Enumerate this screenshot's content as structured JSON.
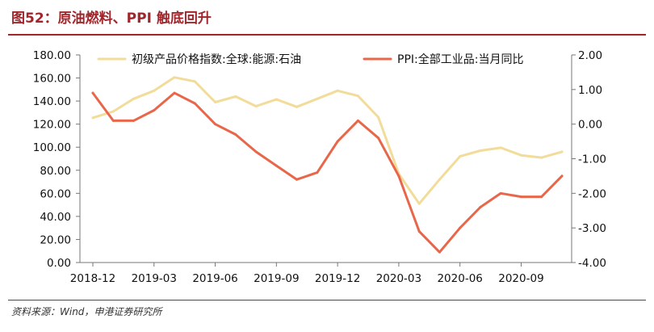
{
  "header": {
    "title": "图52：原油燃料、PPI 触底回升"
  },
  "footer": {
    "source": "资料来源：Wind，申港证券研究所"
  },
  "chart_data": {
    "type": "line",
    "title": "图52：原油燃料、PPI 触底回升",
    "x": [
      "2018-12",
      "2019-01",
      "2019-02",
      "2019-03",
      "2019-04",
      "2019-05",
      "2019-06",
      "2019-07",
      "2019-08",
      "2019-09",
      "2019-10",
      "2019-11",
      "2019-12",
      "2020-01",
      "2020-02",
      "2020-03",
      "2020-04",
      "2020-05",
      "2020-06",
      "2020-07",
      "2020-08",
      "2020-09",
      "2020-10",
      "2020-11"
    ],
    "x_tick_labels": [
      "2018-12",
      "2019-03",
      "2019-06",
      "2019-09",
      "2019-12",
      "2020-03",
      "2020-06",
      "2020-09"
    ],
    "y_left_ticks": [
      "0.00",
      "20.00",
      "40.00",
      "60.00",
      "80.00",
      "100.00",
      "120.00",
      "140.00",
      "160.00",
      "180.00"
    ],
    "y_right_ticks": [
      "-4.00",
      "-3.00",
      "-2.00",
      "-1.00",
      "0.00",
      "1.00",
      "2.00"
    ],
    "ylim_left": [
      0,
      180
    ],
    "ylim_right": [
      -4,
      2
    ],
    "legend_position": "top",
    "series": [
      {
        "name": "初级产品价格指数:全球:能源:石油",
        "axis": "left",
        "color": "#f2dc9a",
        "values": [
          125.5,
          131,
          142,
          149,
          160.5,
          157,
          139,
          144,
          135.5,
          141.5,
          135,
          142,
          149,
          144.5,
          126,
          77,
          51,
          72,
          92,
          97,
          99.5,
          93,
          91,
          96
        ]
      },
      {
        "name": "PPI:全部工业品:当月同比",
        "axis": "right",
        "color": "#e8674a",
        "values": [
          0.9,
          0.1,
          0.1,
          0.4,
          0.9,
          0.6,
          0.0,
          -0.3,
          -0.8,
          -1.2,
          -1.6,
          -1.4,
          -0.5,
          0.1,
          -0.4,
          -1.5,
          -3.1,
          -3.7,
          -3.0,
          -2.4,
          -2.0,
          -2.1,
          -2.1,
          -1.5
        ]
      }
    ]
  }
}
